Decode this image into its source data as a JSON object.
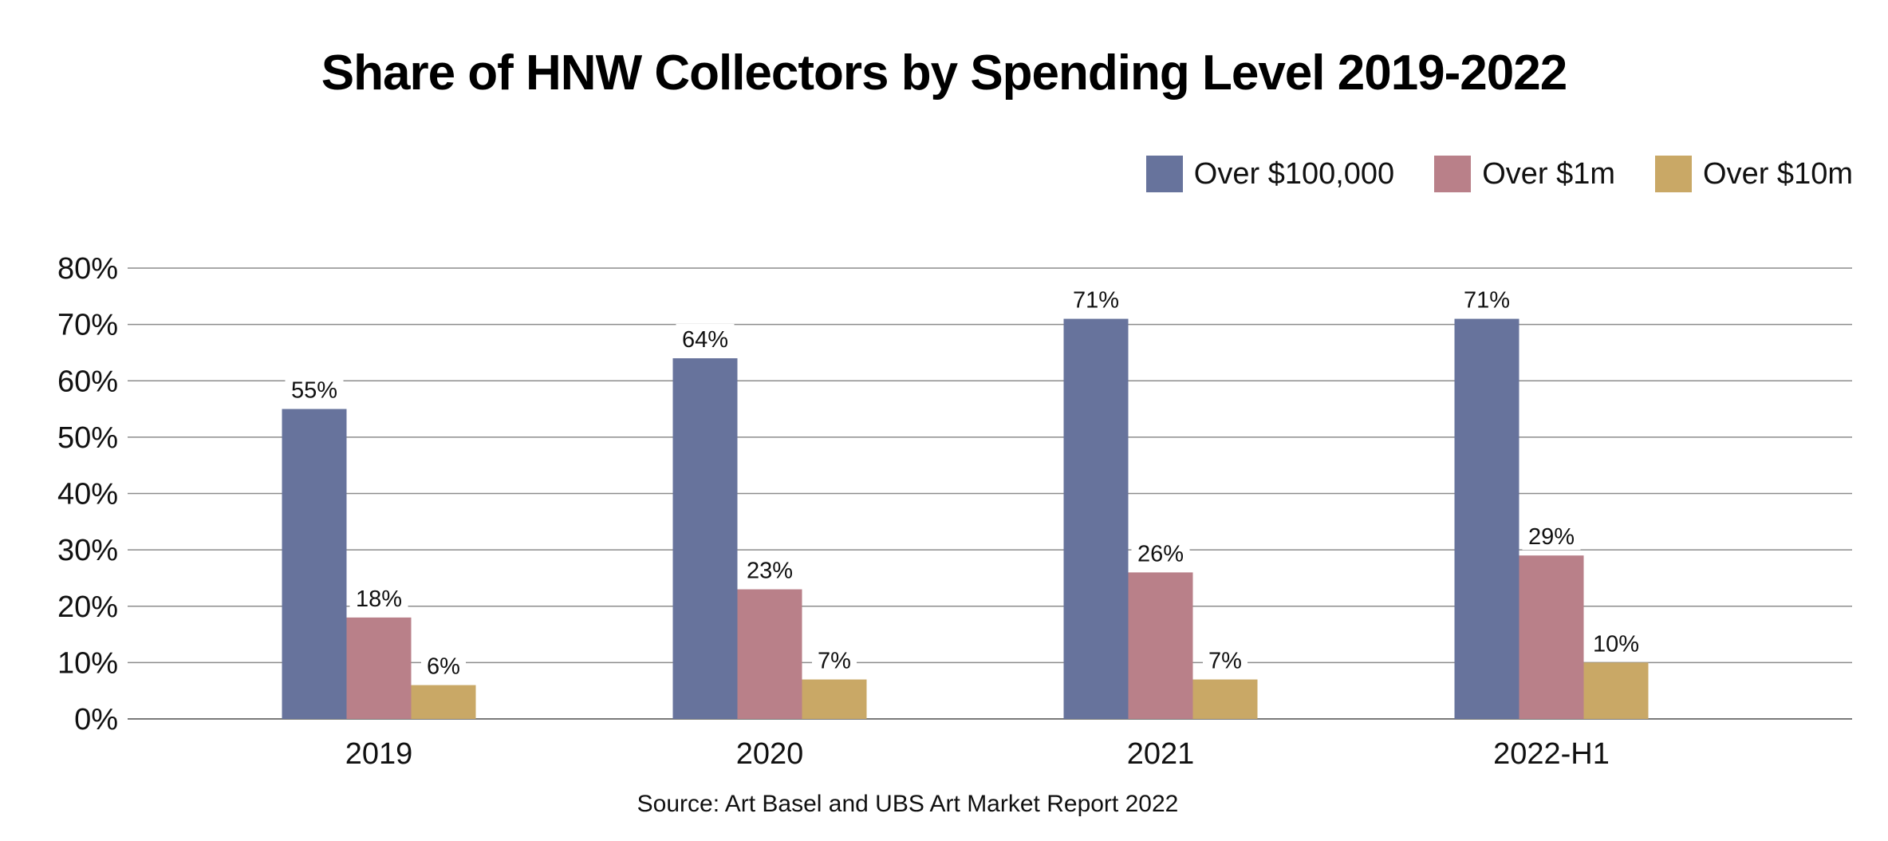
{
  "chart_data": {
    "type": "bar",
    "title": "Share of HNW Collectors by Spending Level 2019-2022",
    "categories": [
      "2019",
      "2020",
      "2021",
      "2022-H1"
    ],
    "series": [
      {
        "name": "Over $100,000",
        "color": "#67739c",
        "values": [
          55,
          64,
          71,
          71
        ],
        "labels": [
          "55%",
          "64%",
          "71%",
          "71%"
        ]
      },
      {
        "name": "Over $1m",
        "color": "#b98089",
        "values": [
          18,
          23,
          26,
          29
        ],
        "labels": [
          "18%",
          "23%",
          "26%",
          "29%"
        ]
      },
      {
        "name": "Over $10m",
        "color": "#c9a866",
        "values": [
          6,
          7,
          7,
          10
        ],
        "labels": [
          "6%",
          "7%",
          "7%",
          "10%"
        ]
      }
    ],
    "ylim": [
      0,
      80
    ],
    "y_ticks": [
      0,
      10,
      20,
      30,
      40,
      50,
      60,
      70,
      80
    ],
    "y_tick_labels": [
      "0%",
      "10%",
      "20%",
      "30%",
      "40%",
      "50%",
      "60%",
      "70%",
      "80%"
    ],
    "grid": true,
    "legend_position": "top-right",
    "xlabel": "",
    "ylabel": "",
    "source": "Source: Art Basel and UBS Art Market Report 2022"
  }
}
